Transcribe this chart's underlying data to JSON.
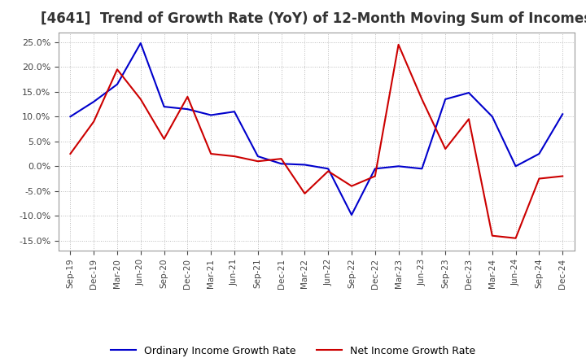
{
  "title": "[4641]  Trend of Growth Rate (YoY) of 12-Month Moving Sum of Incomes",
  "title_fontsize": 12,
  "ylim": [
    -0.17,
    0.27
  ],
  "yticks": [
    -0.15,
    -0.1,
    -0.05,
    0.0,
    0.05,
    0.1,
    0.15,
    0.2,
    0.25
  ],
  "background_color": "#ffffff",
  "grid_color": "#bbbbbb",
  "ordinary_color": "#0000cc",
  "net_color": "#cc0000",
  "legend_labels": [
    "Ordinary Income Growth Rate",
    "Net Income Growth Rate"
  ],
  "x_labels": [
    "Sep-19",
    "Dec-19",
    "Mar-20",
    "Jun-20",
    "Sep-20",
    "Dec-20",
    "Mar-21",
    "Jun-21",
    "Sep-21",
    "Dec-21",
    "Mar-22",
    "Jun-22",
    "Sep-22",
    "Dec-22",
    "Mar-23",
    "Jun-23",
    "Sep-23",
    "Dec-23",
    "Mar-24",
    "Jun-24",
    "Sep-24",
    "Dec-24"
  ],
  "ordinary": [
    0.1,
    0.13,
    0.165,
    0.248,
    0.12,
    0.115,
    0.103,
    0.11,
    0.02,
    0.005,
    0.003,
    -0.005,
    -0.098,
    -0.005,
    0.0,
    -0.005,
    0.135,
    0.148,
    0.1,
    0.0,
    0.025,
    0.105
  ],
  "net": [
    0.025,
    0.09,
    0.195,
    0.135,
    0.055,
    0.14,
    0.025,
    0.02,
    0.01,
    0.015,
    -0.055,
    -0.01,
    -0.04,
    -0.02,
    0.245,
    0.135,
    0.035,
    0.095,
    -0.14,
    -0.145,
    -0.025,
    -0.02
  ]
}
